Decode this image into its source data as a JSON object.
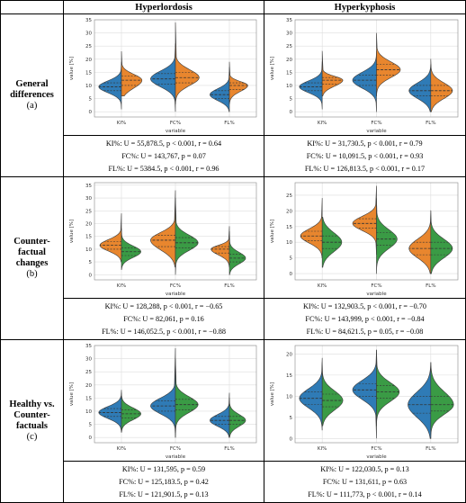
{
  "header": {
    "corner": "",
    "col1": "Hyperlordosis",
    "col2": "Hyperkyphosis"
  },
  "rows": [
    {
      "title1": "General",
      "title2": "differences",
      "sub": "(a)"
    },
    {
      "title1": "Counter-",
      "title2": "factual",
      "title3": "changes",
      "sub": "(b)"
    },
    {
      "title1": "Healthy vs.",
      "title2": "Counter-",
      "title3": "factuals",
      "sub": "(c)"
    }
  ],
  "stats": {
    "a_left": [
      "KI%: U = 55,878.5, p < 0.001, r = 0.64",
      "FC%: U = 143,767, p = 0.07",
      "FL%: U = 5384.5, p < 0.001, r = 0.96"
    ],
    "a_right": [
      "KI%: U = 31,730.5, p < 0.001, r = 0.79",
      "FC%: U = 10,091.5, p < 0.001, r = 0.93",
      "FL%: U = 126,813.5, p < 0.001, r = 0.17"
    ],
    "b_left": [
      "KI%: U = 128,288, p < 0.001, r = −0.65",
      "FC%: U = 82,061, p = 0.16",
      "FL%: U = 146,052.5, p < 0.001, r = −0.88"
    ],
    "b_right": [
      "KI%: U = 132,903.5, p < 0.001, r = −0.70",
      "FC%: U = 143,999, p < 0.001, r = −0.84",
      "FL%: U = 84,621.5, p = 0.05, r = −0.08"
    ],
    "c_left": [
      "KI%: U = 131,595, p = 0.59",
      "FC%: U = 125,183.5, p = 0.42",
      "FL%: U = 121,901.5, p = 0.13"
    ],
    "c_right": [
      "KI%: U = 122,030.5, p = 0.13",
      "FC%: U = 131,611, p = 0.63",
      "FL%: U = 111,773, p < 0.001, r = 0.14"
    ]
  },
  "colors": {
    "blue": "#2f7bb6",
    "orange": "#e8862e",
    "green": "#3a9b45",
    "grid": "#dddddd"
  },
  "chart_data": [
    {
      "id": "a_left",
      "type": "violin",
      "categories": [
        "KI%",
        "FC%",
        "FL%"
      ],
      "ylabel": "value [%]",
      "xlabel": "variable",
      "ylim": [
        -2,
        35
      ],
      "yticks": [
        0,
        5,
        10,
        15,
        20,
        25,
        30,
        35
      ],
      "left": {
        "color": "blue",
        "median": [
          9.5,
          12.5,
          6.5
        ],
        "q1": [
          8,
          10.5,
          5
        ],
        "q3": [
          11,
          14.5,
          8
        ],
        "min": [
          1,
          0,
          0
        ],
        "max": [
          19,
          26,
          17
        ],
        "width": [
          0.42,
          0.46,
          0.36
        ]
      },
      "right": {
        "color": "orange",
        "median": [
          12,
          13,
          10
        ],
        "q1": [
          10,
          11,
          8.5
        ],
        "q3": [
          13.5,
          15,
          11
        ],
        "min": [
          6,
          3,
          3
        ],
        "max": [
          23,
          34,
          19
        ],
        "width": [
          0.38,
          0.44,
          0.34
        ]
      }
    },
    {
      "id": "a_right",
      "type": "violin",
      "categories": [
        "KI%",
        "FC%",
        "FL%"
      ],
      "ylabel": "value [%]",
      "xlabel": "variable",
      "ylim": [
        -2,
        35
      ],
      "yticks": [
        0,
        5,
        10,
        15,
        20,
        25,
        30,
        35
      ],
      "left": {
        "color": "blue",
        "median": [
          9.5,
          12,
          8
        ],
        "q1": [
          8,
          10,
          6
        ],
        "q3": [
          11,
          14,
          10
        ],
        "min": [
          1,
          0,
          0
        ],
        "max": [
          19,
          23,
          18
        ],
        "width": [
          0.42,
          0.44,
          0.4
        ]
      },
      "right": {
        "color": "orange",
        "median": [
          12,
          16,
          8
        ],
        "q1": [
          10.5,
          14,
          6
        ],
        "q3": [
          13,
          18,
          10
        ],
        "min": [
          6,
          6,
          0
        ],
        "max": [
          23,
          30,
          20
        ],
        "width": [
          0.38,
          0.44,
          0.4
        ]
      }
    },
    {
      "id": "b_left",
      "type": "violin",
      "categories": [
        "KI%",
        "FC%",
        "FL%"
      ],
      "ylabel": "value [%]",
      "xlabel": "variable",
      "ylim": [
        -2,
        36
      ],
      "yticks": [
        0,
        5,
        10,
        15,
        20,
        25,
        30,
        35
      ],
      "left": {
        "color": "orange",
        "median": [
          11.5,
          13.5,
          10
        ],
        "q1": [
          10,
          11,
          8.5
        ],
        "q3": [
          13,
          15.5,
          11
        ],
        "min": [
          5,
          3,
          3
        ],
        "max": [
          24,
          33,
          19
        ],
        "width": [
          0.4,
          0.46,
          0.34
        ]
      },
      "right": {
        "color": "green",
        "median": [
          9,
          12.5,
          6.5
        ],
        "q1": [
          7.5,
          10.5,
          5
        ],
        "q3": [
          10.5,
          14.5,
          8
        ],
        "min": [
          2,
          0,
          0
        ],
        "max": [
          18,
          30,
          17
        ],
        "width": [
          0.36,
          0.42,
          0.3
        ]
      }
    },
    {
      "id": "b_right",
      "type": "violin",
      "categories": [
        "KI%",
        "FC%",
        "FL%"
      ],
      "ylabel": "value [%]",
      "xlabel": "variable",
      "ylim": [
        -2,
        29
      ],
      "yticks": [
        0,
        5,
        10,
        15,
        20,
        25
      ],
      "left": {
        "color": "orange",
        "median": [
          12,
          16,
          8
        ],
        "q1": [
          10.5,
          14.5,
          6
        ],
        "q3": [
          13.5,
          17.5,
          10
        ],
        "min": [
          5,
          6,
          0
        ],
        "max": [
          24,
          28,
          20
        ],
        "width": [
          0.4,
          0.44,
          0.4
        ]
      },
      "right": {
        "color": "green",
        "median": [
          10,
          11,
          8
        ],
        "q1": [
          8,
          9,
          6
        ],
        "q3": [
          12,
          13,
          10
        ],
        "min": [
          2,
          0,
          0
        ],
        "max": [
          18,
          24,
          20
        ],
        "width": [
          0.36,
          0.38,
          0.4
        ]
      }
    },
    {
      "id": "c_left",
      "type": "violin",
      "categories": [
        "KI%",
        "FC%",
        "FL%"
      ],
      "ylabel": "value [%]",
      "xlabel": "variable",
      "ylim": [
        -2,
        35
      ],
      "yticks": [
        0,
        5,
        10,
        15,
        20,
        25,
        30,
        35
      ],
      "left": {
        "color": "blue",
        "median": [
          9.5,
          12,
          6.5
        ],
        "q1": [
          8,
          10,
          5
        ],
        "q3": [
          11,
          14,
          8
        ],
        "min": [
          2,
          0,
          0
        ],
        "max": [
          18,
          34,
          17
        ],
        "width": [
          0.42,
          0.46,
          0.36
        ]
      },
      "right": {
        "color": "green",
        "median": [
          9,
          12.5,
          6.5
        ],
        "q1": [
          7.5,
          10.5,
          5
        ],
        "q3": [
          10.5,
          14.5,
          8
        ],
        "min": [
          2,
          0,
          0
        ],
        "max": [
          17,
          30,
          15
        ],
        "width": [
          0.36,
          0.42,
          0.3
        ]
      }
    },
    {
      "id": "c_right",
      "type": "violin",
      "categories": [
        "KI%",
        "FC%",
        "FL%"
      ],
      "ylabel": "value [%]",
      "xlabel": "variable",
      "ylim": [
        -1,
        22
      ],
      "yticks": [
        0,
        5,
        10,
        15,
        20
      ],
      "left": {
        "color": "blue",
        "median": [
          9.5,
          11.5,
          8
        ],
        "q1": [
          8,
          10,
          6
        ],
        "q3": [
          11,
          13,
          10
        ],
        "min": [
          2,
          0,
          0
        ],
        "max": [
          19,
          21,
          18
        ],
        "width": [
          0.42,
          0.44,
          0.42
        ]
      },
      "right": {
        "color": "green",
        "median": [
          9,
          11,
          8
        ],
        "q1": [
          7.5,
          9.5,
          6.5
        ],
        "q3": [
          10.5,
          12.5,
          10
        ],
        "min": [
          3,
          3,
          0
        ],
        "max": [
          18,
          21,
          18
        ],
        "width": [
          0.38,
          0.42,
          0.42
        ]
      }
    }
  ]
}
